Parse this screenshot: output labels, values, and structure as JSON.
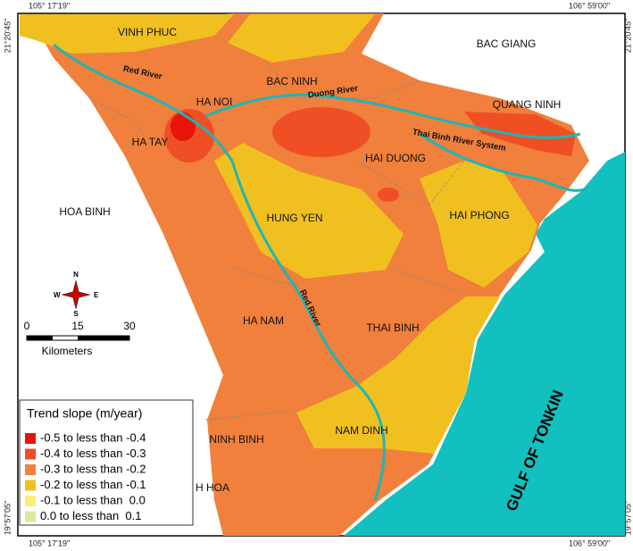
{
  "coordinates": {
    "lon_west": "105° 17'19\"",
    "lon_east": "106° 59'00\"",
    "lat_north": "21°20'45\"",
    "lat_south": "19°57'05\""
  },
  "places": [
    "VINH PHUC",
    "BAC GIANG",
    "BAC NINH",
    "HA NOI",
    "QUANG NINH",
    "HA TAY",
    "HAI DUONG",
    "HOA BINH",
    "HUNG YEN",
    "HAI PHONG",
    "HA NAM",
    "THAI BINH",
    "NAM DINH",
    "NINH BINH",
    "H HOA"
  ],
  "rivers": [
    "Red River",
    "Duong River",
    "Thai Binh River System",
    "Red River"
  ],
  "sea": "GULF OF TONKIN",
  "compass": {
    "north": "N",
    "south": "S",
    "east": "E",
    "west": "W"
  },
  "scale": {
    "ticks": [
      "0",
      "15",
      "30"
    ],
    "unit": "Kilometers"
  },
  "legend": {
    "title": "Trend slope (m/year)",
    "items": [
      {
        "label": "-0.5 to less than -0.4",
        "color": "#e8140c"
      },
      {
        "label": "-0.4 to less than -0.3",
        "color": "#f04e24"
      },
      {
        "label": "-0.3 to less than -0.2",
        "color": "#f0803c"
      },
      {
        "label": "-0.2 to less than -0.1",
        "color": "#f0c020"
      },
      {
        "label": "-0.1 to less than  0.0",
        "color": "#f8f078"
      },
      {
        "label": "0.0 to less than  0.1",
        "color": "#d8eca0"
      }
    ]
  }
}
